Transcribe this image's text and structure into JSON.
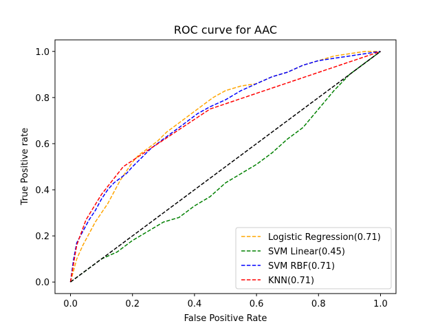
{
  "chart_data": {
    "type": "line",
    "title": "ROC curve for AAC",
    "xlabel": "False Positive Rate",
    "ylabel": "True Positive rate",
    "xlim": [
      -0.05,
      1.05
    ],
    "ylim": [
      -0.05,
      1.05
    ],
    "xticks": [
      0.0,
      0.2,
      0.4,
      0.6,
      0.8,
      1.0
    ],
    "yticks": [
      0.0,
      0.2,
      0.4,
      0.6,
      0.8,
      1.0
    ],
    "xtick_labels": [
      "0.0",
      "0.2",
      "0.4",
      "0.6",
      "0.8",
      "1.0"
    ],
    "ytick_labels": [
      "0.0",
      "0.2",
      "0.4",
      "0.6",
      "0.8",
      "1.0"
    ],
    "grid": false,
    "legend_position": "lower-right",
    "series": [
      {
        "name": "Logistic Regression(0.71)",
        "color": "#FFA500",
        "style": "dashed",
        "x": [
          0.0,
          0.01,
          0.02,
          0.04,
          0.06,
          0.08,
          0.1,
          0.12,
          0.14,
          0.16,
          0.18,
          0.2,
          0.22,
          0.25,
          0.28,
          0.31,
          0.34,
          0.37,
          0.4,
          0.43,
          0.46,
          0.5,
          0.55,
          0.6,
          0.65,
          0.7,
          0.75,
          0.8,
          0.85,
          0.9,
          0.95,
          1.0
        ],
        "y": [
          0.0,
          0.05,
          0.1,
          0.16,
          0.21,
          0.26,
          0.3,
          0.34,
          0.39,
          0.44,
          0.48,
          0.52,
          0.55,
          0.58,
          0.61,
          0.65,
          0.68,
          0.71,
          0.74,
          0.77,
          0.8,
          0.83,
          0.85,
          0.86,
          0.89,
          0.91,
          0.94,
          0.96,
          0.98,
          0.99,
          1.0,
          1.0
        ]
      },
      {
        "name": "SVM Linear(0.45)",
        "color": "#008000",
        "style": "dashed",
        "x": [
          0.0,
          0.05,
          0.1,
          0.15,
          0.2,
          0.25,
          0.3,
          0.35,
          0.4,
          0.45,
          0.5,
          0.55,
          0.6,
          0.65,
          0.7,
          0.75,
          0.8,
          0.85,
          0.9,
          0.95,
          1.0
        ],
        "y": [
          0.0,
          0.05,
          0.1,
          0.13,
          0.18,
          0.22,
          0.26,
          0.28,
          0.33,
          0.37,
          0.43,
          0.47,
          0.51,
          0.56,
          0.62,
          0.67,
          0.75,
          0.83,
          0.9,
          0.95,
          1.0
        ]
      },
      {
        "name": "SVM RBF(0.71)",
        "color": "#0000FF",
        "style": "dashed",
        "x": [
          0.0,
          0.01,
          0.02,
          0.04,
          0.06,
          0.08,
          0.1,
          0.12,
          0.14,
          0.16,
          0.18,
          0.2,
          0.23,
          0.26,
          0.29,
          0.32,
          0.35,
          0.38,
          0.41,
          0.45,
          0.5,
          0.55,
          0.6,
          0.65,
          0.7,
          0.75,
          0.8,
          0.85,
          0.9,
          0.95,
          1.0
        ],
        "y": [
          0.0,
          0.1,
          0.17,
          0.22,
          0.27,
          0.31,
          0.36,
          0.4,
          0.43,
          0.45,
          0.47,
          0.5,
          0.54,
          0.58,
          0.61,
          0.64,
          0.67,
          0.7,
          0.73,
          0.76,
          0.79,
          0.83,
          0.86,
          0.89,
          0.91,
          0.94,
          0.96,
          0.97,
          0.98,
          0.99,
          1.0
        ]
      },
      {
        "name": "KNN(0.71)",
        "color": "#FF0000",
        "style": "dashed",
        "x": [
          0.0,
          0.02,
          0.05,
          0.1,
          0.17,
          0.45,
          1.0
        ],
        "y": [
          0.0,
          0.16,
          0.27,
          0.38,
          0.5,
          0.75,
          1.0
        ]
      },
      {
        "name": "",
        "color": "#000000",
        "style": "dashed",
        "x": [
          0.0,
          1.0
        ],
        "y": [
          0.0,
          1.0
        ]
      }
    ]
  }
}
